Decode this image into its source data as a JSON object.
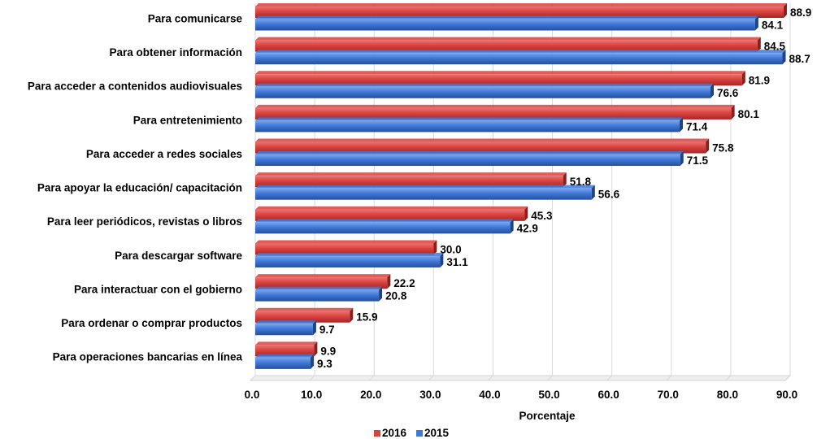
{
  "chart_data": {
    "type": "bar",
    "orientation": "horizontal",
    "categories": [
      "Para comunicarse",
      "Para obtener información",
      "Para acceder a contenidos audiovisuales",
      "Para entretenimiento",
      "Para acceder a redes sociales",
      "Para apoyar la educación/ capacitación",
      "Para leer periódicos, revistas o libros",
      "Para descargar software",
      "Para interactuar con el gobierno",
      "Para ordenar o comprar productos",
      "Para operaciones bancarias en línea"
    ],
    "series": [
      {
        "name": "2016",
        "color": "#d9423f",
        "values": [
          88.9,
          84.5,
          81.9,
          80.1,
          75.8,
          51.8,
          45.3,
          30.0,
          22.2,
          15.9,
          9.9
        ],
        "labels": [
          "88.9",
          "84.5",
          "81.9",
          "80.1",
          "75.8",
          "51.8",
          "45.3",
          "30.0",
          "22.2",
          "15.9",
          "9.9"
        ]
      },
      {
        "name": "2015",
        "color": "#3f78d6",
        "values": [
          84.1,
          88.7,
          76.6,
          71.4,
          71.5,
          56.6,
          42.9,
          31.1,
          20.8,
          9.7,
          9.3
        ],
        "labels": [
          "84.1",
          "88.7",
          "76.6",
          "71.4",
          "71.5",
          "56.6",
          "42.9",
          "31.1",
          "20.8",
          "9.7",
          "9.3"
        ]
      }
    ],
    "xlabel": "Porcentaje",
    "ylabel": "",
    "xlim": [
      0,
      90
    ],
    "ticks": [
      "0.0",
      "10.0",
      "20.0",
      "30.0",
      "40.0",
      "50.0",
      "60.0",
      "70.0",
      "80.0",
      "90.0"
    ],
    "grid": true,
    "legend_position": "bottom"
  }
}
